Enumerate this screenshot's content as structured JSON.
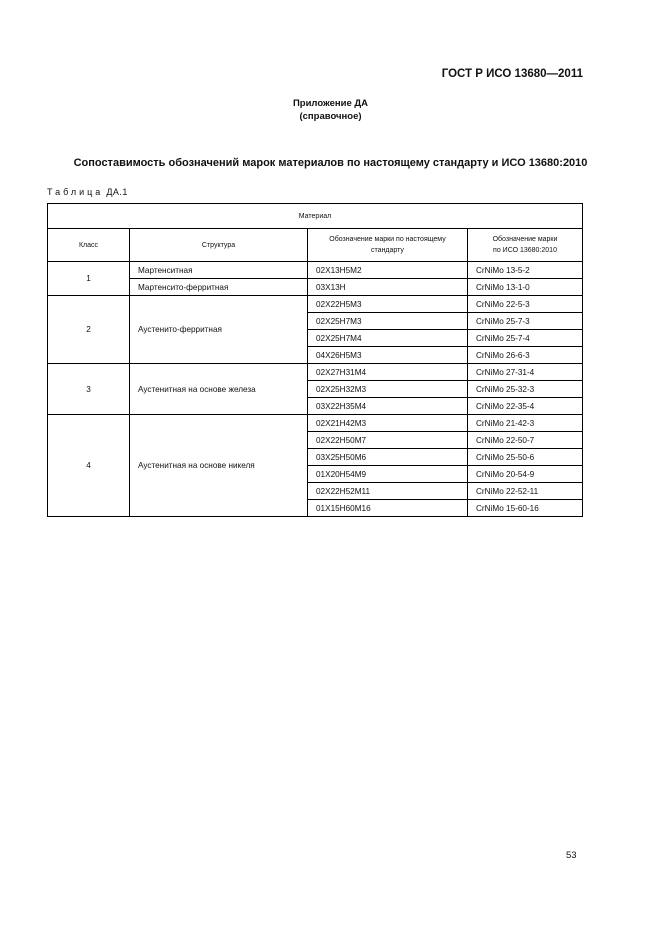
{
  "header": {
    "standard": "ГОСТ Р ИСО 13680—2011"
  },
  "appendix": {
    "title": "Приложение ДА",
    "subtitle": "(справочное)"
  },
  "section_title": "Сопоставимость обозначений марок материалов по настоящему стандарту и ИСО 13680:2010",
  "table_label_prefix": "Таблица",
  "table_label_number": "ДА.1",
  "table": {
    "group_header": "Материал",
    "columns": [
      "Класс",
      "Структура",
      "Обозначение марки по настоящему стандарту",
      "Обозначение марки по ИСО 13680:2010"
    ],
    "groups": [
      {
        "class": "1",
        "structures": [
          {
            "name": "Мартенситная",
            "rows": [
              [
                "02Х13Н5М2",
                "CrNiMo 13-5-2"
              ]
            ]
          },
          {
            "name": "Мартенсито-ферритная",
            "rows": [
              [
                "03Х13Н",
                "CrNiMo 13-1-0"
              ]
            ]
          }
        ]
      },
      {
        "class": "2",
        "structures": [
          {
            "name": "Аустенито-ферритная",
            "rows": [
              [
                "02Х22Н5М3",
                "CrNiMo 22-5-3"
              ],
              [
                "02Х25Н7М3",
                "CrNiMo 25-7-3"
              ],
              [
                "02Х25Н7М4",
                "CrNiMo 25-7-4"
              ],
              [
                "04Х26Н5М3",
                "CrNiMo 26-6-3"
              ]
            ]
          }
        ]
      },
      {
        "class": "3",
        "structures": [
          {
            "name": "Аустенитная на основе железа",
            "rows": [
              [
                "02Х27Н31М4",
                "CrNiMo 27-31-4"
              ],
              [
                "02Х25Н32М3",
                "CrNiMo 25-32-3"
              ],
              [
                "03Х22Н35М4",
                "CrNiMo 22-35-4"
              ]
            ]
          }
        ]
      },
      {
        "class": "4",
        "structures": [
          {
            "name": "Аустенитная на основе никеля",
            "rows": [
              [
                "02Х21Н42М3",
                "CrNiMo 21-42-3"
              ],
              [
                "02Х22Н50М7",
                "CrNiMo 22-50-7"
              ],
              [
                "03Х25Н50М6",
                "CrNiMo 25-50-6"
              ],
              [
                "01Х20Н54М9",
                "CrNiMo 20-54-9"
              ],
              [
                "02Х22Н52М11",
                "CrNiMo 22-52-11"
              ],
              [
                "01Х15Н60М16",
                "CrNiMo 15-60-16"
              ]
            ]
          }
        ]
      }
    ]
  },
  "page_number": "53"
}
